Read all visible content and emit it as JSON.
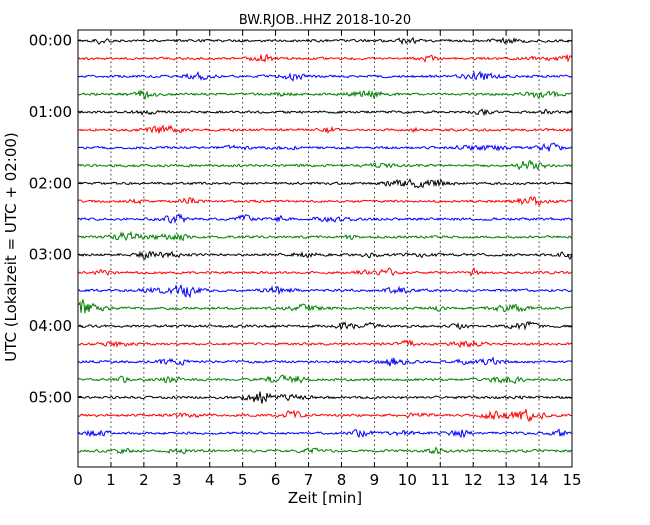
{
  "chart_data": {
    "type": "line",
    "title": "BW.RJOB..HHZ 2018-10-20",
    "xlabel": "Zeit  [min]",
    "ylabel": "UTC (Lokalzeit = UTC + 02:00)",
    "xlim": [
      0,
      15
    ],
    "x_ticks": [
      0,
      1,
      2,
      3,
      4,
      5,
      6,
      7,
      8,
      9,
      10,
      11,
      12,
      13,
      14,
      15
    ],
    "x_tick_labels": [
      "0",
      "1",
      "2",
      "3",
      "4",
      "5",
      "6",
      "7",
      "8",
      "9",
      "10",
      "11",
      "12",
      "13",
      "14",
      "15"
    ],
    "y_tick_labels": [
      "00:00",
      "01:00",
      "02:00",
      "03:00",
      "04:00",
      "05:00"
    ],
    "grid": "vertical dotted lines at each minute",
    "trace_minutes": 15,
    "trace_colors": [
      "#000000",
      "#ff0000",
      "#0000ff",
      "#008000"
    ],
    "series": [
      {
        "start": "00:00",
        "color": "#000000"
      },
      {
        "start": "00:15",
        "color": "#ff0000"
      },
      {
        "start": "00:30",
        "color": "#0000ff"
      },
      {
        "start": "00:45",
        "color": "#008000"
      },
      {
        "start": "01:00",
        "color": "#000000"
      },
      {
        "start": "01:15",
        "color": "#ff0000"
      },
      {
        "start": "01:30",
        "color": "#0000ff"
      },
      {
        "start": "01:45",
        "color": "#008000"
      },
      {
        "start": "02:00",
        "color": "#000000"
      },
      {
        "start": "02:15",
        "color": "#ff0000"
      },
      {
        "start": "02:30",
        "color": "#0000ff"
      },
      {
        "start": "02:45",
        "color": "#008000"
      },
      {
        "start": "03:00",
        "color": "#000000"
      },
      {
        "start": "03:15",
        "color": "#ff0000"
      },
      {
        "start": "03:30",
        "color": "#0000ff"
      },
      {
        "start": "03:45",
        "color": "#008000"
      },
      {
        "start": "04:00",
        "color": "#000000"
      },
      {
        "start": "04:15",
        "color": "#ff0000"
      },
      {
        "start": "04:30",
        "color": "#0000ff"
      },
      {
        "start": "04:45",
        "color": "#008000"
      },
      {
        "start": "05:00",
        "color": "#000000"
      },
      {
        "start": "05:15",
        "color": "#ff0000"
      },
      {
        "start": "05:30",
        "color": "#0000ff"
      },
      {
        "start": "05:45",
        "color": "#008000"
      }
    ]
  }
}
